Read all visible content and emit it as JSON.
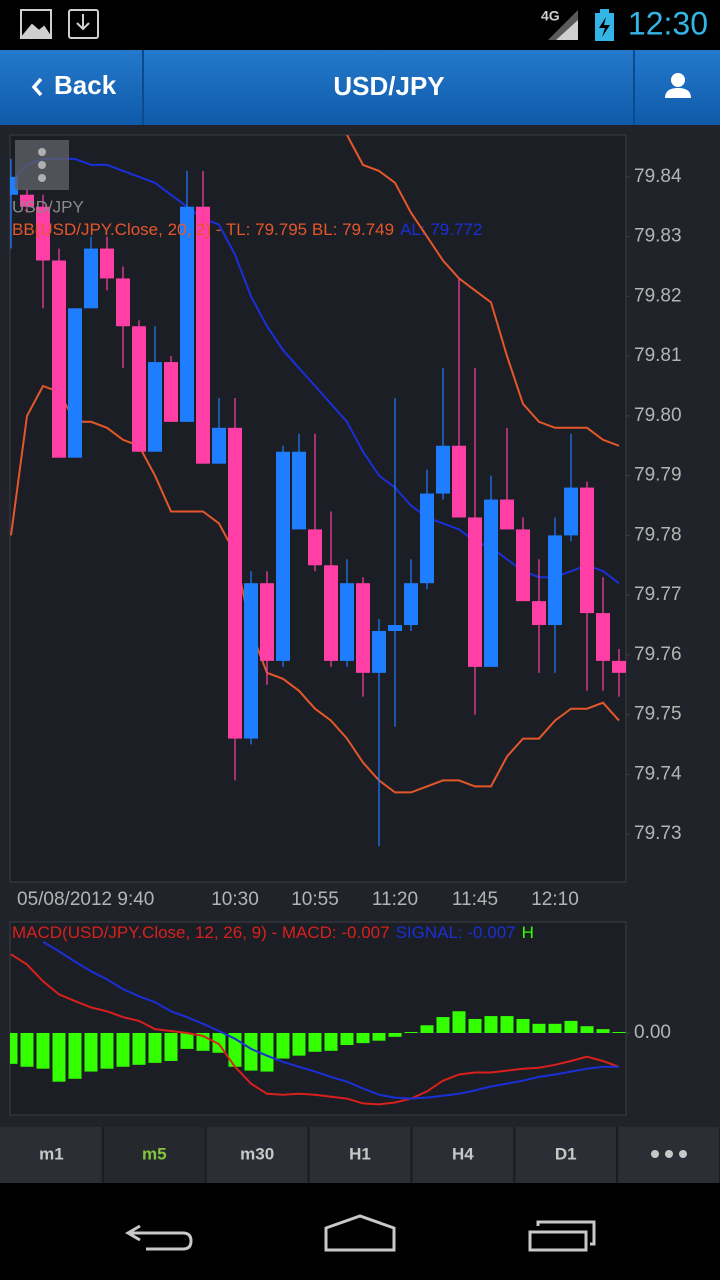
{
  "status_bar": {
    "network": "4G",
    "time": "12:30"
  },
  "header": {
    "back": "Back",
    "title": "USD/JPY"
  },
  "chart_data": [
    {
      "type": "candlestick",
      "symbol_label": "USD/JPY",
      "indicator_label": "BB(USD/JPY.Close, 20, 2) - TL: 79.795 BL: 79.749",
      "indicator_label_2": "AL: 79.772",
      "categories": [
        null,
        null,
        null,
        null,
        "05/08/2012 9:40",
        null,
        null,
        null,
        null,
        null,
        null,
        null,
        null,
        null,
        "10:30",
        null,
        null,
        null,
        null,
        "10:55",
        null,
        null,
        null,
        null,
        "11:20",
        null,
        null,
        null,
        null,
        "11:45",
        null,
        null,
        null,
        null,
        "12:10",
        null,
        null,
        null,
        null
      ],
      "open": [
        79.837,
        79.837,
        79.835,
        79.826,
        79.793,
        79.818,
        79.828,
        79.823,
        79.815,
        79.794,
        79.809,
        79.799,
        79.835,
        79.792,
        79.798,
        79.746,
        79.772,
        79.759,
        79.781,
        79.781,
        79.775,
        79.759,
        79.772,
        79.757,
        79.764,
        79.765,
        79.772,
        79.787,
        79.795,
        79.783,
        79.758,
        79.786,
        79.781,
        79.769,
        79.765,
        79.78,
        79.788,
        79.767,
        79.759
      ],
      "high": [
        79.843,
        79.838,
        79.837,
        79.828,
        79.818,
        79.83,
        79.83,
        79.825,
        79.816,
        79.815,
        79.81,
        79.841,
        79.841,
        79.803,
        79.803,
        79.774,
        79.774,
        79.795,
        79.797,
        79.797,
        79.784,
        79.776,
        79.773,
        79.766,
        79.803,
        79.776,
        79.791,
        79.808,
        79.823,
        79.808,
        79.79,
        79.798,
        79.783,
        79.776,
        79.783,
        79.797,
        79.789,
        79.773,
        79.761
      ],
      "low": [
        79.828,
        79.834,
        79.818,
        79.793,
        79.793,
        79.818,
        79.821,
        79.808,
        79.794,
        79.794,
        79.799,
        79.799,
        79.792,
        79.792,
        79.739,
        79.745,
        79.755,
        79.758,
        79.781,
        79.774,
        79.758,
        79.758,
        79.753,
        79.728,
        79.748,
        79.764,
        79.771,
        79.786,
        79.783,
        79.75,
        79.758,
        79.781,
        79.769,
        79.757,
        79.757,
        79.779,
        79.754,
        79.754,
        79.753
      ],
      "close": [
        79.84,
        79.835,
        79.826,
        79.793,
        79.818,
        79.828,
        79.823,
        79.815,
        79.794,
        79.809,
        79.799,
        79.835,
        79.792,
        79.798,
        79.746,
        79.772,
        79.759,
        79.794,
        79.794,
        79.775,
        79.759,
        79.772,
        79.757,
        79.764,
        79.765,
        79.772,
        79.787,
        79.795,
        79.783,
        79.758,
        79.786,
        79.781,
        79.769,
        79.765,
        79.78,
        79.788,
        79.767,
        79.759,
        79.757
      ],
      "up_color": "#1f7dff",
      "down_color": "#ff3fa6",
      "series": [
        {
          "color": "#e4572a",
          "values": [
            null,
            null,
            null,
            null,
            null,
            null,
            null,
            null,
            null,
            null,
            null,
            null,
            null,
            null,
            null,
            null,
            null,
            null,
            null,
            null,
            null,
            79.847,
            79.842,
            79.841,
            79.839,
            79.834,
            79.83,
            79.826,
            79.823,
            79.821,
            79.819,
            79.81,
            79.802,
            79.799,
            79.798,
            79.798,
            79.798,
            79.796,
            79.795
          ]
        },
        {
          "color": "#1b2fd6",
          "values": [
            79.839,
            79.842,
            79.843,
            79.843,
            79.843,
            79.842,
            79.842,
            79.841,
            79.84,
            79.839,
            79.837,
            79.835,
            79.833,
            79.832,
            79.827,
            79.82,
            79.815,
            79.811,
            79.808,
            79.805,
            79.802,
            79.799,
            79.794,
            79.79,
            79.788,
            79.785,
            79.783,
            79.782,
            79.781,
            79.779,
            79.778,
            79.776,
            79.774,
            79.773,
            79.773,
            79.774,
            79.775,
            79.774,
            79.772
          ]
        },
        {
          "color": "#e4572a",
          "values": [
            79.78,
            79.8,
            79.805,
            79.804,
            79.799,
            79.799,
            79.798,
            79.796,
            79.795,
            79.79,
            79.784,
            79.784,
            79.784,
            79.782,
            79.777,
            79.764,
            79.757,
            79.756,
            79.754,
            79.751,
            79.749,
            79.746,
            79.742,
            79.739,
            79.737,
            79.737,
            79.738,
            79.739,
            79.739,
            79.738,
            79.738,
            79.743,
            79.746,
            79.746,
            79.749,
            79.751,
            79.751,
            79.752,
            79.749
          ]
        }
      ],
      "ylim": [
        79.722,
        79.847
      ],
      "yticks": [
        79.84,
        79.83,
        79.82,
        79.81,
        {
          "value": 79.8,
          "label": "79.80"
        },
        79.79,
        79.78,
        79.77,
        79.76,
        79.75,
        79.74,
        79.73
      ]
    },
    {
      "type": "macd",
      "title": "MACD(USD/JPY.Close, 12, 26, 9) - MACD: -0.007",
      "signal_label": "SIGNAL: -0.007",
      "histogram_label": "H",
      "histogram": {
        "color": "#33ff00",
        "values": [
          -0.0064,
          -0.007,
          -0.0074,
          -0.0101,
          -0.0095,
          -0.008,
          -0.0074,
          -0.007,
          -0.0066,
          -0.0062,
          -0.0058,
          -0.0033,
          -0.0037,
          -0.0041,
          -0.007,
          -0.0078,
          -0.008,
          -0.0053,
          -0.0047,
          -0.0039,
          -0.0037,
          -0.0025,
          -0.0021,
          -0.0016,
          -0.0008,
          0.0002,
          0.0016,
          0.0033,
          0.0045,
          0.0029,
          0.0035,
          0.0035,
          0.0029,
          0.0019,
          0.0019,
          0.0025,
          0.0014,
          0.0008,
          0.0002
        ]
      },
      "series": [
        {
          "color": "#d8201c",
          "values": [
            0.0163,
            0.0142,
            0.0107,
            0.008,
            0.0066,
            0.0053,
            0.0045,
            0.0033,
            0.0025,
            0.0008,
            0.0004,
            0,
            -0.0006,
            -0.0023,
            -0.007,
            -0.0105,
            -0.0126,
            -0.0128,
            -0.0126,
            -0.0128,
            -0.0132,
            -0.0136,
            -0.0146,
            -0.0148,
            -0.0144,
            -0.0136,
            -0.0121,
            -0.0099,
            -0.0086,
            -0.0082,
            -0.0082,
            -0.0078,
            -0.0074,
            -0.0072,
            -0.0066,
            -0.0058,
            -0.0049,
            -0.0058,
            -0.007
          ]
        },
        {
          "color": "#1b2fd6",
          "values": [
            null,
            null,
            0.0189,
            0.0169,
            0.0148,
            0.0128,
            0.0111,
            0.0091,
            0.0076,
            0.0064,
            0.0045,
            0.0033,
            0.0019,
            0.0004,
            -0.0012,
            -0.0033,
            -0.0047,
            -0.006,
            -0.007,
            -0.008,
            -0.0091,
            -0.0101,
            -0.0115,
            -0.0128,
            -0.0134,
            -0.0136,
            -0.0134,
            -0.013,
            -0.0126,
            -0.0119,
            -0.0111,
            -0.0105,
            -0.0099,
            -0.0091,
            -0.0086,
            -0.008,
            -0.0074,
            -0.007,
            -0.007
          ]
        }
      ],
      "ylim": [
        -0.017,
        0.023
      ],
      "yticks": [
        {
          "value": 0,
          "label": "0.00"
        }
      ]
    }
  ],
  "tabs": [
    "m1",
    "m5",
    "m30",
    "H1",
    "H4",
    "D1"
  ],
  "active_tab": 1
}
